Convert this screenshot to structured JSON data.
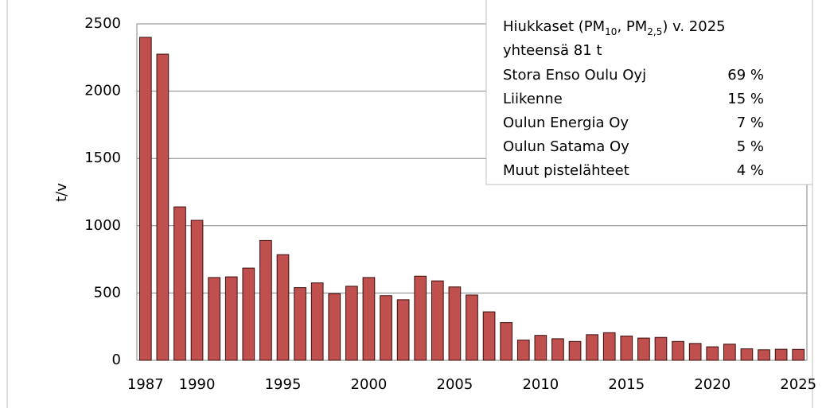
{
  "chart_data": {
    "type": "bar",
    "y_label": "t/v",
    "categories": [
      "1987",
      null,
      null,
      "1990",
      null,
      null,
      null,
      null,
      "1995",
      null,
      null,
      null,
      null,
      "2000",
      null,
      null,
      null,
      null,
      "2005",
      null,
      null,
      null,
      null,
      "2010",
      null,
      null,
      null,
      null,
      "2015",
      null,
      null,
      null,
      null,
      "2020",
      null,
      null,
      null,
      null,
      "2025"
    ],
    "values": [
      2400,
      2275,
      1140,
      1040,
      615,
      620,
      685,
      890,
      785,
      540,
      575,
      495,
      550,
      615,
      480,
      450,
      625,
      590,
      545,
      485,
      360,
      280,
      150,
      185,
      160,
      140,
      190,
      205,
      180,
      165,
      170,
      140,
      125,
      100,
      120,
      85,
      78,
      82,
      81
    ],
    "color": "#c0504d",
    "ylim": [
      0,
      2500
    ],
    "yticks": [
      0,
      500,
      1000,
      1500,
      2000,
      2500
    ],
    "grid": true,
    "annotation": {
      "title_parts": [
        "Hiukkaset (PM",
        "10",
        ", PM",
        "2,5",
        ") v. 2025"
      ],
      "subtitle": "yhteensä 81 t",
      "rows": [
        {
          "label": "Stora Enso Oulu Oyj",
          "value": 69,
          "value_label": "69 %"
        },
        {
          "label": "Liikenne",
          "value": 15,
          "value_label": "15 %"
        },
        {
          "label": "Oulun Energia Oy",
          "value": 7,
          "value_label": "7 %"
        },
        {
          "label": "Oulun Satama Oy",
          "value": 5,
          "value_label": "5 %"
        },
        {
          "label": "Muut pistelähteet",
          "value": 4,
          "value_label": "4 %"
        }
      ]
    }
  }
}
